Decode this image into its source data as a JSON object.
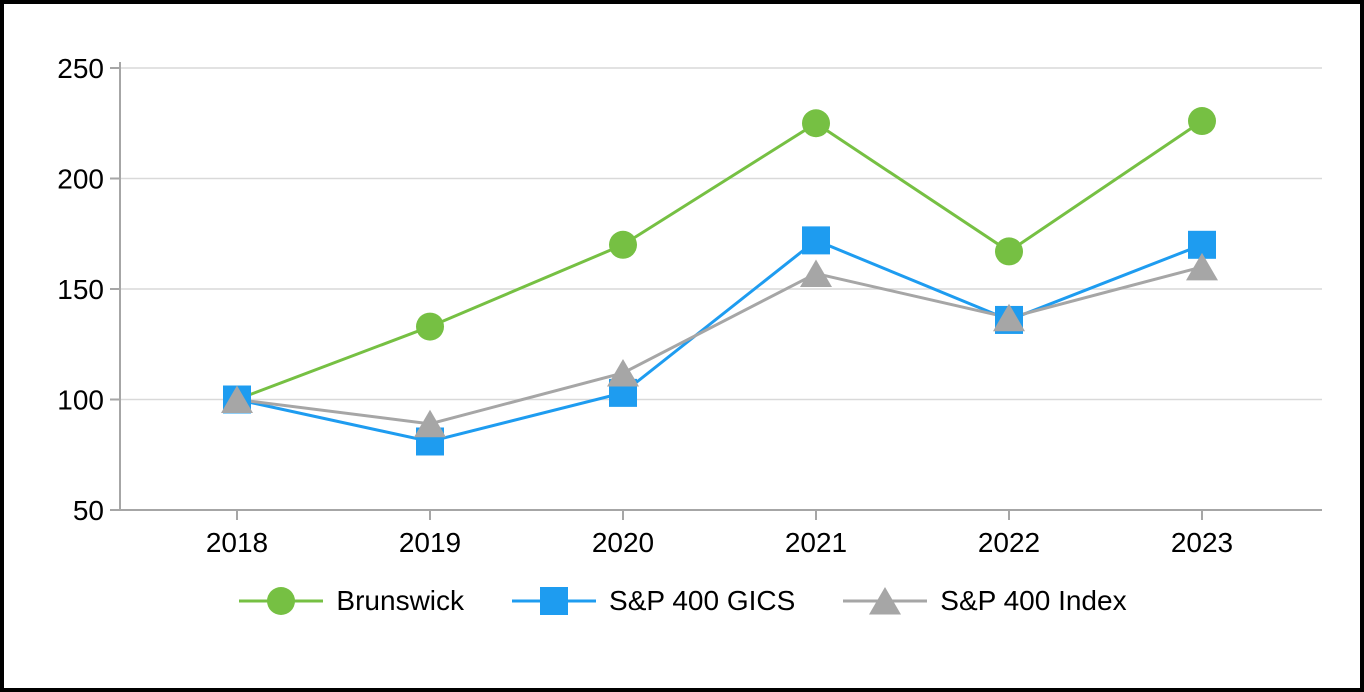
{
  "chart_data": {
    "type": "line",
    "title": "",
    "x": [
      "2018",
      "2019",
      "2020",
      "2021",
      "2022",
      "2023"
    ],
    "series": [
      {
        "name": "Brunswick",
        "marker": "circle",
        "color": "#76C043",
        "values": [
          100,
          133,
          170,
          225,
          167,
          226
        ]
      },
      {
        "name": "S&P 400 GICS",
        "marker": "square",
        "color": "#1E9CF0",
        "values": [
          100,
          81,
          103,
          172,
          136,
          170
        ]
      },
      {
        "name": "S&P 400 Index",
        "marker": "triangle",
        "color": "#A6A6A6",
        "values": [
          100,
          89,
          112,
          157,
          137,
          160
        ]
      }
    ],
    "ylim": [
      50,
      250
    ],
    "yticks": [
      50,
      100,
      150,
      200,
      250
    ],
    "grid": true,
    "legend_position": "bottom",
    "colors": {
      "axis": "#A6A6A6",
      "gridline": "#D9D9D9",
      "text": "#000000",
      "background": "#FFFFFF",
      "frame_border": "#000000"
    }
  }
}
